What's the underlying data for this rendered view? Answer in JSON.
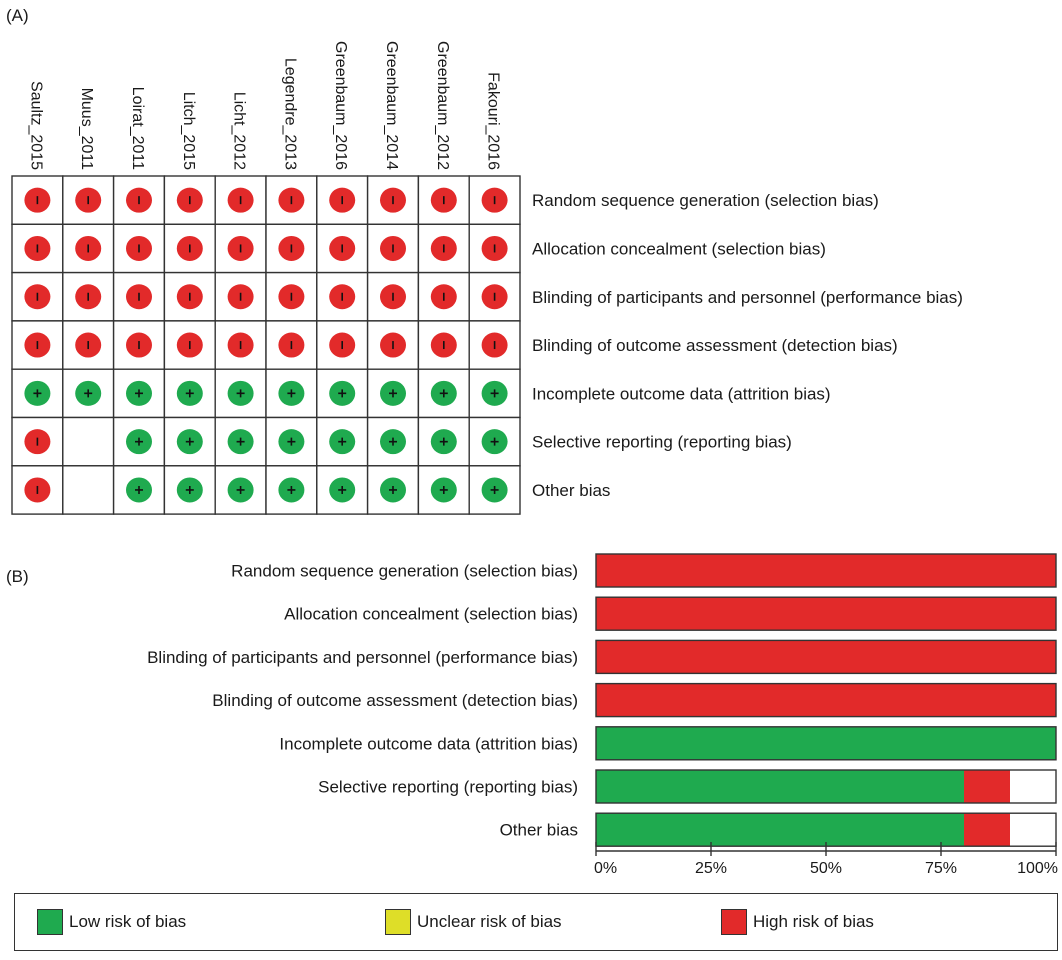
{
  "panel_a_label": "(A)",
  "panel_b_label": "(B)",
  "colors": {
    "low": "#1faa4f",
    "unclear": "#dede28",
    "high": "#e22a2a",
    "border": "#333333"
  },
  "chart_data": [
    {
      "type": "table",
      "studies": [
        "Saultz_2015",
        "Muus_2011",
        "Loirat_2011",
        "Litch_2015",
        "Licht_2012",
        "Legendre_2013",
        "Greenbaum_2016",
        "Greenbaum_2014",
        "Greenbaum_2012",
        "Fakouri_2016"
      ],
      "domains": [
        "Random sequence generation (selection bias)",
        "Allocation concealment (selection bias)",
        "Blinding of participants and personnel (performance bias)",
        "Blinding of outcome assessment (detection bias)",
        "Incomplete outcome data (attrition bias)",
        "Selective reporting (reporting bias)",
        "Other bias"
      ],
      "judgements": [
        [
          "high",
          "high",
          "high",
          "high",
          "high",
          "high",
          "high",
          "high",
          "high",
          "high"
        ],
        [
          "high",
          "high",
          "high",
          "high",
          "high",
          "high",
          "high",
          "high",
          "high",
          "high"
        ],
        [
          "high",
          "high",
          "high",
          "high",
          "high",
          "high",
          "high",
          "high",
          "high",
          "high"
        ],
        [
          "high",
          "high",
          "high",
          "high",
          "high",
          "high",
          "high",
          "high",
          "high",
          "high"
        ],
        [
          "low",
          "low",
          "low",
          "low",
          "low",
          "low",
          "low",
          "low",
          "low",
          "low"
        ],
        [
          "high",
          null,
          "low",
          "low",
          "low",
          "low",
          "low",
          "low",
          "low",
          "low"
        ],
        [
          "high",
          null,
          "low",
          "low",
          "low",
          "low",
          "low",
          "low",
          "low",
          "low"
        ]
      ],
      "symbols": {
        "low": "+",
        "high": "-"
      }
    },
    {
      "type": "bar",
      "stacked": true,
      "orientation": "horizontal",
      "categories": [
        "Random sequence generation (selection bias)",
        "Allocation concealment (selection bias)",
        "Blinding of participants and personnel (performance bias)",
        "Blinding of outcome assessment (detection bias)",
        "Incomplete outcome data (attrition bias)",
        "Selective reporting (reporting bias)",
        "Other bias"
      ],
      "series": [
        {
          "name": "Low risk of bias",
          "color": "#1faa4f",
          "values": [
            0,
            0,
            0,
            0,
            100,
            80,
            80
          ]
        },
        {
          "name": "Unclear risk of bias",
          "color": "#dede28",
          "values": [
            0,
            0,
            0,
            0,
            0,
            0,
            0
          ]
        },
        {
          "name": "High risk of bias",
          "color": "#e22a2a",
          "values": [
            100,
            100,
            100,
            100,
            0,
            10,
            10
          ]
        }
      ],
      "xlim": [
        0,
        100
      ],
      "xticks": [
        "0%",
        "25%",
        "50%",
        "75%",
        "100%"
      ]
    }
  ],
  "legend": [
    {
      "label": "Low risk of bias",
      "key": "low"
    },
    {
      "label": "Unclear risk of bias",
      "key": "unclear"
    },
    {
      "label": "High risk of bias",
      "key": "high"
    }
  ]
}
